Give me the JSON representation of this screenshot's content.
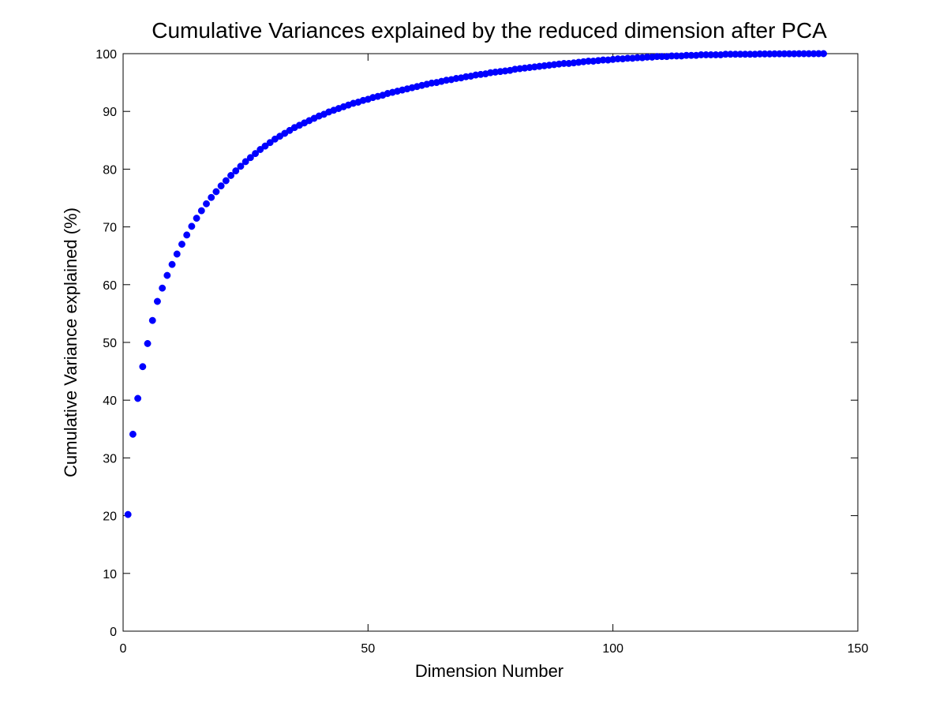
{
  "chart_data": {
    "type": "scatter",
    "title": "Cumulative Variances explained by the reduced dimension after PCA",
    "xlabel": "Dimension Number",
    "ylabel": "Cumulative Variance explained (%)",
    "xlim": [
      0,
      150
    ],
    "ylim": [
      0,
      100
    ],
    "xticks": [
      0,
      50,
      100,
      150
    ],
    "yticks": [
      0,
      10,
      20,
      30,
      40,
      50,
      60,
      70,
      80,
      90,
      100
    ],
    "grid": false,
    "legend": "none",
    "marker_color": "#0000ff",
    "series": [
      {
        "x": [
          1,
          2,
          3,
          4,
          5,
          6,
          7,
          8,
          9,
          10,
          11,
          12,
          13,
          14,
          15,
          16,
          17,
          18,
          19,
          20,
          21,
          22,
          23,
          24,
          25,
          26,
          27,
          28,
          29,
          30,
          31,
          32,
          33,
          34,
          35,
          36,
          37,
          38,
          39,
          40,
          41,
          42,
          43,
          44,
          45,
          46,
          47,
          48,
          49,
          50,
          51,
          52,
          53,
          54,
          55,
          56,
          57,
          58,
          59,
          60,
          61,
          62,
          63,
          64,
          65,
          66,
          67,
          68,
          69,
          70,
          71,
          72,
          73,
          74,
          75,
          76,
          77,
          78,
          79,
          80,
          81,
          82,
          83,
          84,
          85,
          86,
          87,
          88,
          89,
          90,
          91,
          92,
          93,
          94,
          95,
          96,
          97,
          98,
          99,
          100,
          101,
          102,
          103,
          104,
          105,
          106,
          107,
          108,
          109,
          110,
          111,
          112,
          113,
          114,
          115,
          116,
          117,
          118,
          119,
          120,
          121,
          122,
          123,
          124,
          125,
          126,
          127,
          128,
          129,
          130,
          131,
          132,
          133,
          134,
          135,
          136,
          137,
          138,
          139,
          140,
          141,
          142,
          143
        ],
        "y": [
          20.2,
          34.1,
          40.3,
          45.8,
          49.8,
          53.8,
          57.1,
          59.4,
          61.6,
          63.5,
          65.3,
          67.0,
          68.6,
          70.1,
          71.5,
          72.8,
          74.0,
          75.1,
          76.1,
          77.1,
          78.0,
          78.9,
          79.7,
          80.5,
          81.3,
          82.0,
          82.7,
          83.4,
          84.0,
          84.6,
          85.2,
          85.7,
          86.2,
          86.7,
          87.2,
          87.6,
          88.0,
          88.4,
          88.8,
          89.2,
          89.5,
          89.9,
          90.2,
          90.5,
          90.8,
          91.1,
          91.4,
          91.6,
          91.9,
          92.1,
          92.4,
          92.6,
          92.8,
          93.1,
          93.3,
          93.5,
          93.7,
          93.9,
          94.1,
          94.3,
          94.5,
          94.7,
          94.9,
          95.0,
          95.2,
          95.4,
          95.5,
          95.7,
          95.8,
          96.0,
          96.1,
          96.3,
          96.4,
          96.5,
          96.7,
          96.8,
          96.9,
          97.0,
          97.1,
          97.3,
          97.4,
          97.5,
          97.6,
          97.7,
          97.8,
          97.9,
          98.0,
          98.1,
          98.2,
          98.3,
          98.3,
          98.4,
          98.5,
          98.6,
          98.7,
          98.7,
          98.8,
          98.9,
          98.9,
          99.0,
          99.1,
          99.1,
          99.2,
          99.2,
          99.3,
          99.3,
          99.4,
          99.4,
          99.5,
          99.5,
          99.5,
          99.6,
          99.6,
          99.6,
          99.7,
          99.7,
          99.7,
          99.8,
          99.8,
          99.8,
          99.8,
          99.8,
          99.9,
          99.9,
          99.9,
          99.9,
          99.9,
          99.9,
          99.9,
          99.95,
          99.95,
          99.95,
          99.97,
          99.97,
          99.98,
          99.98,
          99.98,
          99.99,
          99.99,
          99.99,
          99.99,
          100.0,
          100.0
        ]
      }
    ]
  }
}
